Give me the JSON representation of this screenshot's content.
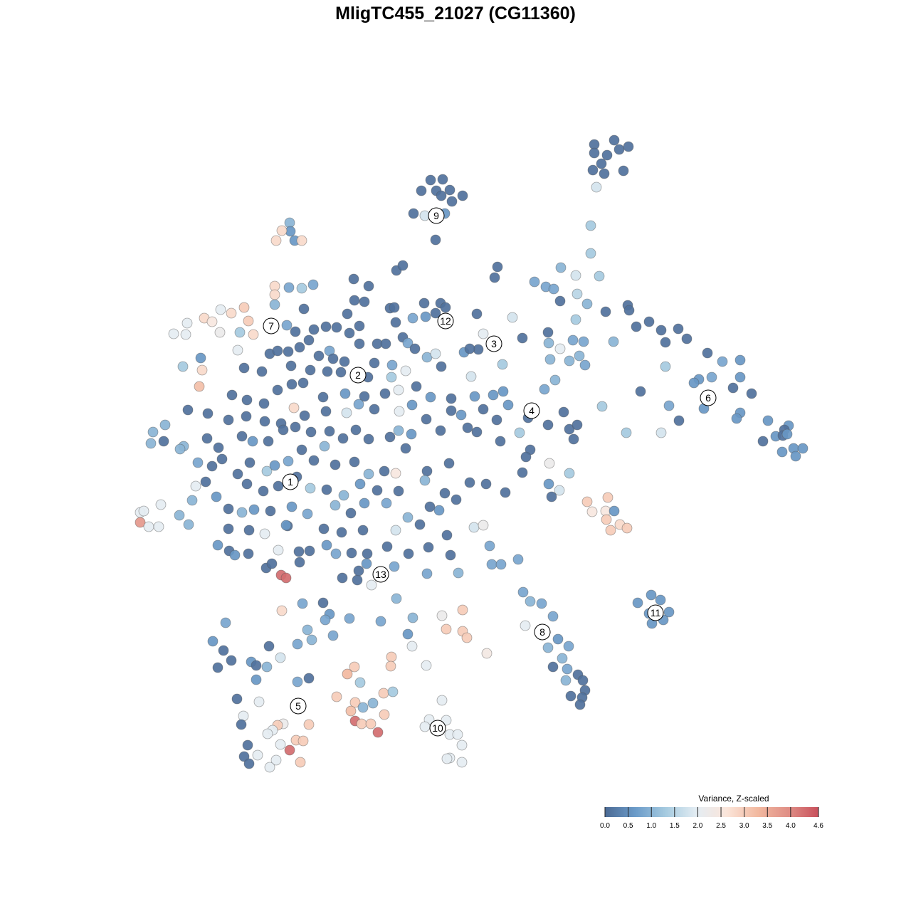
{
  "chart_data": {
    "type": "scatter",
    "title": "MligTC455_21027 (CG11360)",
    "colorbar": {
      "title": "Variance, Z-scaled",
      "clim": [
        0,
        4.6
      ],
      "colors": [
        "#4b6a94",
        "#6b9bc9",
        "#a6cbe0",
        "#e4edf3",
        "#fbe5da",
        "#f2b9a0",
        "#e08f86",
        "#c8505c"
      ],
      "ticks": [
        {
          "value": 0,
          "label": "0.0"
        },
        0.5,
        {
          "value": 1,
          "label": "1.0"
        },
        1.5,
        {
          "value": 2,
          "label": "2.0"
        },
        2.5,
        {
          "value": 3,
          "label": "3.0"
        },
        3.5,
        {
          "value": 4,
          "label": "4.0"
        },
        4.6
      ]
    },
    "cluster_labels": {
      "labels": [
        "1",
        "2",
        "3",
        "4",
        "5",
        "6",
        "7",
        "8",
        "9",
        "10",
        "11",
        "12",
        "13"
      ],
      "x": [
        408,
        503,
        694,
        747,
        419,
        995,
        381,
        762,
        613,
        615,
        921,
        626,
        535
      ],
      "y": [
        677,
        527,
        483,
        577,
        992,
        559,
        458,
        888,
        303,
        1023,
        861,
        451,
        807
      ]
    },
    "x": [
      835,
      863,
      870,
      883,
      835,
      853,
      833,
      849,
      876,
      845,
      838,
      830,
      830,
      605,
      622,
      592,
      613,
      632,
      650,
      620,
      635,
      581,
      597,
      625,
      612,
      407,
      408,
      396,
      388,
      414,
      424,
      699,
      695,
      788,
      809,
      842,
      751,
      767,
      778,
      811,
      787,
      825,
      851,
      882,
      884,
      894,
      912,
      929,
      953,
      935,
      965,
      862,
      770,
      809,
      805,
      820,
      771,
      787,
      814,
      800,
      822,
      773,
      994,
      1015,
      1040,
      935,
      1000,
      982,
      975,
      1040,
      1030,
      1056,
      900,
      989,
      1040,
      1035,
      1079,
      1108,
      1102,
      1090,
      1100,
      1106,
      1072,
      1115,
      1128,
      1118,
      1099,
      954,
      940,
      929,
      880,
      846,
      765,
      780,
      792,
      770,
      800,
      806,
      811,
      742,
      730,
      745,
      739,
      772,
      800,
      734,
      771,
      786,
      775,
      825,
      854,
      832,
      851,
      863,
      852,
      871,
      881,
      858,
      735,
      745,
      761,
      777,
      738,
      770,
      784,
      799,
      790,
      797,
      777,
      795,
      812,
      819,
      822,
      802,
      818,
      815,
      896,
      915,
      928,
      912,
      940,
      916,
      932,
      688,
      691,
      704,
      728,
      666,
      679,
      644,
      600,
      554,
      557,
      396,
      425,
      454,
      463,
      491,
      457,
      432,
      468,
      438,
      418,
      378,
      317,
      299,
      314,
      325,
      306,
      353,
      360,
      375,
      394,
      360,
      418,
      434,
      535,
      580,
      573,
      579,
      621,
      650,
      627,
      650,
      656,
      684,
      599,
      550,
      549,
      498,
      488,
      506,
      473,
      499,
      539,
      552,
      524,
      510,
      493,
      540,
      499,
      508,
      521,
      531,
      333,
      364,
      342,
      339,
      398,
      390,
      383,
      376,
      434,
      394,
      348,
      416,
      426,
      407,
      362,
      343,
      350,
      388,
      379,
      422,
      621,
      603,
      627,
      597,
      632,
      643,
      649,
      632,
      628,
      649,
      197,
      202,
      197,
      209,
      223,
      226,
      252,
      265,
      270,
      275,
      215,
      232,
      212,
      230,
      258,
      253,
      264,
      278,
      289,
      244,
      263,
      261,
      287,
      298,
      310,
      325,
      343,
      349,
      337,
      356,
      309,
      334,
      282,
      257,
      284,
      280,
      386,
      386,
      386,
      406,
      424,
      440,
      395,
      402,
      391,
      374,
      372,
      404,
      306,
      322,
      330,
      321,
      557,
      566,
      497,
      518,
      498,
      512,
      427,
      488,
      548,
      554,
      596,
      619,
      626,
      598,
      580,
      612,
      670,
      720,
      679,
      672,
      706,
      734,
      403,
      415,
      441,
      458,
      473,
      491,
      505,
      556,
      566,
      573,
      583,
      600,
      612,
      620,
      652,
      660,
      662,
      379,
      390,
      405,
      421,
      434,
      448,
      463,
      468,
      484,
      505,
      530,
      542,
      526,
      551,
      570,
      343,
      368,
      409,
      436,
      460,
      479,
      517,
      550,
      326,
      347,
      371,
      390,
      410,
      426,
      454,
      485,
      512,
      541,
      560,
      585,
      605,
      634,
      667,
      693,
      707,
      714,
      292,
      321,
      346,
      372,
      395,
      413,
      428,
      458,
      487,
      504,
      526,
      561,
      579,
      599,
      634,
      648,
      679,
      698,
      291,
      307,
      340,
      355,
      377,
      398,
      415,
      437,
      463,
      482,
      500,
      518,
      548,
      560,
      578,
      619,
      657,
      670,
      703,
      298,
      312,
      334,
      351,
      375,
      386,
      405,
      424,
      441,
      456,
      471,
      498,
      518,
      540,
      556,
      570,
      600,
      631,
      660,
      683,
      710,
      347,
      370,
      391,
      417,
      436,
      459,
      483,
      506,
      530,
      560,
      597,
      625,
      641,
      304,
      321,
      340,
      357,
      380,
      410,
      432,
      471,
      493,
      512,
      543,
      573,
      604,
      617,
      350,
      402,
      455,
      480,
      510,
      556,
      590,
      628,
      420,
      435,
      459,
      472,
      494,
      516,
      544,
      574,
      602,
      633,
      349,
      382,
      421,
      481,
      502,
      522,
      515,
      504
    ],
    "y": [
      203,
      197,
      210,
      206,
      215,
      218,
      239,
      244,
      240,
      230,
      263,
      317,
      356,
      253,
      252,
      268,
      268,
      267,
      275,
      275,
      283,
      300,
      303,
      300,
      337,
      313,
      325,
      324,
      338,
      338,
      338,
      375,
      390,
      376,
      387,
      388,
      396,
      403,
      406,
      413,
      423,
      427,
      438,
      429,
      436,
      459,
      452,
      464,
      462,
      481,
      476,
      480,
      467,
      449,
      478,
      480,
      482,
      490,
      500,
      507,
      513,
      505,
      496,
      508,
      506,
      515,
      530,
      533,
      538,
      530,
      545,
      553,
      550,
      574,
      580,
      588,
      591,
      598,
      604,
      613,
      612,
      610,
      620,
      630,
      630,
      641,
      635,
      591,
      570,
      608,
      608,
      571,
      547,
      534,
      579,
      597,
      603,
      617,
      597,
      587,
      608,
      632,
      642,
      651,
      665,
      664,
      680,
      689,
      698,
      705,
      699,
      719,
      718,
      718,
      730,
      737,
      742,
      745,
      832,
      845,
      848,
      866,
      879,
      910,
      898,
      908,
      925,
      940,
      937,
      956,
      948,
      956,
      970,
      978,
      980,
      990,
      847,
      836,
      843,
      862,
      860,
      876,
      871,
      767,
      793,
      793,
      786,
      741,
      738,
      805,
      806,
      796,
      841,
      858,
      848,
      847,
      863,
      869,
      871,
      885,
      893,
      899,
      905,
      908,
      875,
      901,
      914,
      928,
      938,
      930,
      935,
      937,
      924,
      955,
      958,
      953,
      873,
      868,
      891,
      908,
      865,
      857,
      884,
      887,
      896,
      918,
      935,
      923,
      936,
      937,
      947,
      959,
      979,
      987,
      974,
      972,
      988,
      994,
      999,
      1004,
      1013,
      1017,
      1017,
      1029,
      982,
      986,
      1006,
      1018,
      1017,
      1019,
      1026,
      1031,
      1018,
      1046,
      1047,
      1040,
      1041,
      1054,
      1061,
      1063,
      1073,
      1068,
      1078,
      1071,
      984,
      1011,
      1012,
      1021,
      1032,
      1032,
      1047,
      1065,
      1066,
      1071,
      720,
      718,
      734,
      740,
      740,
      709,
      724,
      737,
      703,
      683,
      607,
      597,
      623,
      620,
      627,
      631,
      576,
      650,
      677,
      469,
      454,
      470,
      447,
      452,
      435,
      440,
      432,
      451,
      467,
      470,
      467,
      492,
      503,
      515,
      520,
      543,
      402,
      414,
      428,
      404,
      405,
      400,
      808,
      812,
      773,
      798,
      750,
      739,
      766,
      774,
      780,
      743,
      380,
      373,
      392,
      402,
      422,
      424,
      434,
      441,
      433,
      432,
      426,
      426,
      432,
      445,
      447,
      440,
      441,
      446,
      469,
      491,
      512,
      475,
      457,
      466,
      463,
      459,
      460,
      468,
      458,
      453,
      474,
      482,
      490,
      502,
      497,
      515,
      495,
      490,
      529,
      497,
      493,
      494,
      488,
      478,
      500,
      493,
      504,
      508,
      483,
      483,
      483,
      510,
      513,
      521,
      517,
      522,
      514,
      520,
      522,
      523,
      530,
      530,
      555,
      562,
      567,
      548,
      540,
      538,
      558,
      553,
      557,
      553,
      548,
      543,
      558,
      560,
      557,
      555,
      550,
      569,
      581,
      590,
      585,
      592,
      595,
      573,
      584,
      578,
      580,
      568,
      575,
      578,
      569,
      589,
      577,
      583,
      575,
      590,
      616,
      629,
      613,
      620,
      620,
      604,
      600,
      607,
      606,
      616,
      604,
      617,
      614,
      605,
      610,
      605,
      601,
      607,
      620,
      655,
      645,
      666,
      650,
      662,
      654,
      648,
      632,
      647,
      627,
      653,
      649,
      666,
      662,
      665,
      630,
      662,
      651,
      678,
      680,
      692,
      680,
      690,
      683,
      670,
      686,
      688,
      696,
      680,
      689,
      690,
      675,
      693,
      702,
      698,
      715,
      720,
      716,
      718,
      712,
      722,
      710,
      721,
      707,
      707,
      727,
      712,
      717,
      745,
      738,
      743,
      748,
      745,
      745,
      737,
      752,
      775,
      774,
      766,
      778,
      777,
      778,
      768,
      778,
      769,
      780,
      778,
      792,
      790,
      812,
      815,
      822,
      792,
      802
    ],
    "values": [
      0.1,
      0.1,
      0.1,
      0.1,
      0.1,
      0.1,
      0.1,
      0.1,
      0.1,
      0.1,
      1.8,
      1.3,
      1.3,
      0.1,
      0.1,
      0.1,
      0.1,
      0.1,
      0.1,
      0.1,
      0.1,
      0.1,
      1.8,
      0.6,
      0.1,
      1.0,
      0.6,
      2.8,
      2.8,
      0.6,
      2.8,
      0.1,
      0.1,
      1.0,
      1.8,
      1.3,
      0.8,
      0.8,
      0.8,
      1.5,
      0.1,
      1.0,
      0.1,
      0.1,
      0.1,
      0.1,
      0.1,
      0.1,
      0.1,
      0.1,
      0.1,
      1.0,
      0.1,
      1.3,
      0.8,
      0.8,
      1.0,
      2.0,
      1.0,
      1.0,
      0.8,
      1.0,
      0.1,
      0.8,
      0.6,
      1.3,
      0.8,
      0.6,
      0.6,
      0.6,
      0.1,
      0.1,
      0.1,
      0.6,
      0.6,
      0.6,
      0.6,
      0.6,
      0.1,
      0.6,
      0.1,
      0.6,
      0.1,
      0.6,
      0.6,
      0.6,
      0.6,
      0.1,
      0.8,
      1.8,
      1.3,
      1.3,
      0.8,
      1.0,
      0.1,
      0.1,
      0.1,
      0.1,
      0.1,
      0.1,
      1.3,
      0.1,
      0.1,
      2.2,
      1.3,
      0.1,
      0.6,
      1.8,
      0.1,
      3.0,
      3.0,
      2.5,
      2.5,
      0.6,
      3.0,
      2.8,
      3.0,
      3.0,
      0.8,
      1.0,
      0.8,
      0.8,
      2.0,
      1.0,
      0.6,
      0.8,
      1.0,
      0.8,
      0.1,
      1.0,
      0.1,
      0.1,
      0.1,
      0.1,
      0.1,
      0.1,
      0.6,
      0.6,
      0.6,
      0.6,
      0.6,
      0.6,
      0.6,
      0.8,
      0.8,
      0.8,
      0.8,
      1.8,
      2.2,
      1.0,
      0.8,
      0.8,
      1.0,
      2.8,
      0.8,
      0.1,
      0.6,
      0.8,
      0.8,
      1.0,
      0.8,
      1.0,
      0.8,
      0.1,
      0.8,
      0.6,
      0.1,
      0.1,
      0.1,
      0.6,
      0.1,
      1.0,
      1.8,
      0.6,
      0.8,
      0.1,
      0.8,
      1.0,
      0.6,
      2.0,
      2.2,
      3.0,
      3.0,
      3.0,
      3.0,
      2.4,
      2.0,
      3.0,
      3.0,
      3.0,
      3.3,
      1.3,
      3.0,
      3.0,
      3.0,
      1.3,
      1.0,
      1.0,
      3.2,
      3.0,
      4.3,
      3.0,
      3.0,
      4.3,
      0.1,
      2.0,
      2.0,
      0.1,
      2.2,
      3.0,
      2.0,
      2.0,
      3.0,
      2.0,
      0.1,
      3.0,
      3.0,
      4.3,
      2.0,
      0.1,
      0.1,
      2.0,
      2.0,
      3.0,
      2.0,
      2.0,
      2.0,
      2.0,
      2.0,
      2.0,
      2.0,
      2.0,
      2.0,
      2.0,
      2.0,
      2.0,
      3.8,
      2.0,
      2.0,
      2.0,
      1.0,
      1.0,
      1.0,
      2.0,
      1.0,
      1.0,
      1.0,
      0.1,
      1.0,
      1.0,
      0.1,
      0.8,
      0.1,
      2.0,
      2.0,
      2.0,
      2.8,
      2.5,
      2.0,
      2.8,
      3.0,
      3.0,
      1.3,
      2.8,
      2.2,
      2.0,
      0.6,
      1.3,
      2.8,
      3.2,
      2.8,
      2.8,
      1.0,
      0.8,
      1.3,
      0.8,
      4.3,
      4.3,
      2.0,
      0.1,
      2.0,
      0.1,
      0.6,
      0.1,
      0.6,
      0.1,
      0.1,
      0.1,
      0.1,
      0.1,
      0.1,
      0.1,
      0.1,
      0.1,
      0.1,
      0.1,
      0.1,
      0.1,
      0.1,
      0.6,
      0.8,
      0.1,
      0.1,
      1.8,
      2.0,
      0.1,
      1.3,
      0.1,
      0.8,
      0.1,
      0.1,
      0.1,
      0.1,
      0.1,
      0.1,
      0.1,
      0.1,
      0.8,
      0.1,
      1.0,
      1.8,
      0.1,
      0.6,
      0.1,
      1.8,
      0.1,
      0.1,
      0.1,
      0.1,
      0.1,
      0.1,
      0.8,
      0.1,
      0.1,
      0.1,
      0.1,
      0.1,
      0.1,
      0.8,
      2.0,
      0.1,
      0.1,
      0.1,
      0.1,
      0.1,
      0.1,
      0.1,
      1.3,
      0.1,
      0.1,
      0.1,
      0.1,
      0.1,
      0.1,
      0.1,
      0.6,
      0.1,
      0.1,
      2.0,
      0.1,
      0.6,
      0.1,
      0.6,
      0.6,
      0.6,
      0.6,
      0.1,
      0.1,
      0.1,
      0.1,
      0.1,
      2.8,
      0.1,
      0.1,
      1.8,
      0.8,
      0.1,
      2.0,
      0.6,
      0.1,
      0.1,
      0.6,
      0.1,
      0.1,
      0.1,
      0.1,
      0.1,
      0.6,
      0.1,
      0.1,
      0.1,
      0.1,
      0.1,
      0.1,
      0.1,
      0.1,
      0.1,
      1.0,
      0.6,
      0.1,
      0.1,
      0.1,
      0.1,
      0.1,
      0.1,
      0.1,
      0.1,
      1.3,
      0.6,
      0.8,
      0.1,
      0.1,
      1.0,
      0.1,
      0.1,
      1.0,
      0.1,
      2.5,
      0.1,
      0.1,
      0.1,
      0.1,
      0.1,
      0.1,
      0.1,
      0.1,
      0.1,
      0.1,
      1.3,
      0.1,
      1.0,
      0.6,
      0.1,
      0.1,
      1.0,
      0.1,
      0.1,
      0.6,
      0.1,
      1.0,
      0.6,
      0.1,
      0.6,
      0.8,
      1.0,
      0.1,
      0.6,
      0.8,
      1.0,
      0.1,
      0.6,
      0.1,
      0.6,
      0.1,
      0.1,
      0.1,
      1.8,
      0.1,
      0.1,
      0.1,
      0.1,
      0.6,
      0.8,
      0.1,
      0.1,
      0.1,
      0.1,
      0.1,
      0.1,
      0.1,
      0.1,
      0.1,
      0.1,
      0.1,
      2.0,
      0.6,
      0.1
    ]
  }
}
